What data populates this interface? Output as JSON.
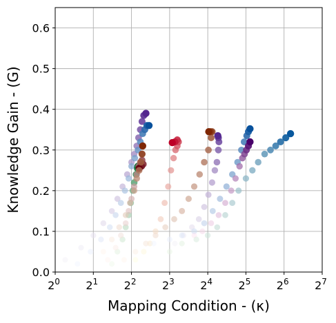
{
  "chart_data": {
    "type": "scatter",
    "xlabel": "Mapping Condition - (κ)",
    "ylabel": "Knowledge Gain - (G)",
    "x_scale": "log2",
    "xlim_exponent": [
      0,
      7
    ],
    "x_tick_base": "2",
    "x_tick_exponents": [
      "0",
      "1",
      "2",
      "3",
      "4",
      "5",
      "6",
      "7"
    ],
    "ylim": [
      0,
      0.65
    ],
    "y_ticks": [
      "0.0",
      "0.1",
      "0.2",
      "0.3",
      "0.4",
      "0.5",
      "0.6"
    ],
    "grid": true,
    "colormaps": {
      "purples": [
        "#f2f0f7",
        "#54278f"
      ],
      "blues": [
        "#eff3ff",
        "#08519c"
      ],
      "greens": [
        "#edf8e9",
        "#006d2c"
      ],
      "reds": [
        "#fff5f0",
        "#67000d"
      ],
      "oranges": [
        "#fff5eb",
        "#7f2704"
      ],
      "yellow_red": [
        "#ffffe0",
        "#bd0026"
      ],
      "pinks": [
        "#fde0ef",
        "#49006a"
      ],
      "green_blue": [
        "#e5f5e0",
        "#08589e"
      ]
    },
    "series": [
      {
        "colormap": "purples",
        "x": [
          1.2,
          1.6,
          2.0,
          2.4,
          2.8,
          3.1,
          3.4,
          3.7,
          4.0,
          4.2,
          4.4,
          4.55,
          4.7,
          4.85,
          5.0,
          5.2
        ],
        "y": [
          0.03,
          0.06,
          0.09,
          0.12,
          0.15,
          0.18,
          0.21,
          0.24,
          0.27,
          0.29,
          0.31,
          0.33,
          0.35,
          0.37,
          0.385,
          0.39
        ]
      },
      {
        "colormap": "blues",
        "x": [
          1.5,
          1.9,
          2.3,
          2.7,
          3.0,
          3.3,
          3.55,
          3.8,
          4.0,
          4.25,
          4.5,
          4.7,
          4.9,
          5.1,
          5.3,
          5.5
        ],
        "y": [
          0.02,
          0.05,
          0.08,
          0.11,
          0.14,
          0.17,
          0.2,
          0.23,
          0.26,
          0.28,
          0.3,
          0.32,
          0.34,
          0.35,
          0.36,
          0.36
        ]
      },
      {
        "colormap": "greens",
        "x": [
          2.8,
          3.1,
          3.4,
          3.6,
          3.8,
          3.95,
          4.1,
          4.2,
          4.35,
          4.45,
          4.5
        ],
        "y": [
          0.02,
          0.05,
          0.08,
          0.11,
          0.14,
          0.17,
          0.2,
          0.22,
          0.24,
          0.255,
          0.26
        ]
      },
      {
        "colormap": "reds",
        "x": [
          2.6,
          3.0,
          3.3,
          3.6,
          3.8,
          4.0,
          4.2,
          4.4,
          4.55,
          4.7,
          4.85,
          4.95,
          4.8,
          4.6
        ],
        "y": [
          0.03,
          0.06,
          0.09,
          0.12,
          0.15,
          0.18,
          0.21,
          0.24,
          0.26,
          0.27,
          0.275,
          0.265,
          0.26,
          0.255
        ]
      },
      {
        "colormap": "oranges",
        "x": [
          2.4,
          2.8,
          3.2,
          3.6,
          3.9,
          4.2,
          4.4,
          4.6,
          4.75,
          4.85,
          4.9
        ],
        "y": [
          0.05,
          0.08,
          0.11,
          0.14,
          0.17,
          0.2,
          0.23,
          0.25,
          0.27,
          0.29,
          0.31
        ]
      },
      {
        "colormap": "yellow_red",
        "x": [
          4.3,
          5.0,
          5.6,
          6.2,
          6.8,
          7.3,
          7.8,
          8.2,
          8.6,
          8.9,
          9.2,
          9.4,
          9.2,
          8.8,
          8.4
        ],
        "y": [
          0.03,
          0.05,
          0.07,
          0.1,
          0.13,
          0.17,
          0.21,
          0.25,
          0.28,
          0.3,
          0.31,
          0.32,
          0.325,
          0.32,
          0.318
        ]
      },
      {
        "colormap": "oranges",
        "x": [
          3.5,
          4.3,
          5.2,
          6.2,
          7.4,
          8.7,
          10.0,
          11.3,
          12.5,
          13.8,
          15.0,
          16.2,
          17.0,
          17.3,
          16.8,
          16.3
        ],
        "y": [
          0.03,
          0.05,
          0.07,
          0.09,
          0.11,
          0.13,
          0.15,
          0.18,
          0.21,
          0.24,
          0.27,
          0.3,
          0.33,
          0.345,
          0.345,
          0.345
        ]
      },
      {
        "colormap": "purples",
        "x": [
          8.8,
          10.3,
          12.0,
          13.6,
          15.0,
          16.2,
          17.3,
          18.2,
          18.9,
          19.4,
          19.6,
          19.4,
          19.2
        ],
        "y": [
          0.07,
          0.09,
          0.11,
          0.13,
          0.16,
          0.19,
          0.22,
          0.25,
          0.27,
          0.3,
          0.32,
          0.33,
          0.335
        ]
      },
      {
        "colormap": "blues",
        "x": [
          6.0,
          8.0,
          10.0,
          12.5,
          15.0,
          17.5,
          20.0,
          22.5,
          25.0,
          27.5,
          29.5,
          31.0,
          32.5,
          33.5,
          34.5
        ],
        "y": [
          0.07,
          0.08,
          0.09,
          0.1,
          0.12,
          0.15,
          0.18,
          0.21,
          0.24,
          0.27,
          0.3,
          0.32,
          0.335,
          0.345,
          0.352
        ]
      },
      {
        "colormap": "pinks",
        "x": [
          12.5,
          14.5,
          17.0,
          19.5,
          22.0,
          24.5,
          26.5,
          28.5,
          30.0,
          31.2,
          32.3,
          33.5,
          34.5
        ],
        "y": [
          0.09,
          0.1,
          0.12,
          0.14,
          0.17,
          0.2,
          0.23,
          0.26,
          0.28,
          0.29,
          0.3,
          0.31,
          0.32
        ]
      },
      {
        "colormap": "green_blue",
        "x": [
          8.0,
          10.0,
          13.0,
          16.0,
          19.0,
          22.0,
          25.0,
          28.0,
          32.0,
          36.0,
          40.0,
          45.0,
          50.0,
          55.0,
          60.0,
          66.0,
          72.0
        ],
        "y": [
          0.05,
          0.07,
          0.08,
          0.09,
          0.11,
          0.14,
          0.17,
          0.2,
          0.23,
          0.25,
          0.27,
          0.29,
          0.3,
          0.31,
          0.32,
          0.33,
          0.34
        ]
      }
    ]
  }
}
